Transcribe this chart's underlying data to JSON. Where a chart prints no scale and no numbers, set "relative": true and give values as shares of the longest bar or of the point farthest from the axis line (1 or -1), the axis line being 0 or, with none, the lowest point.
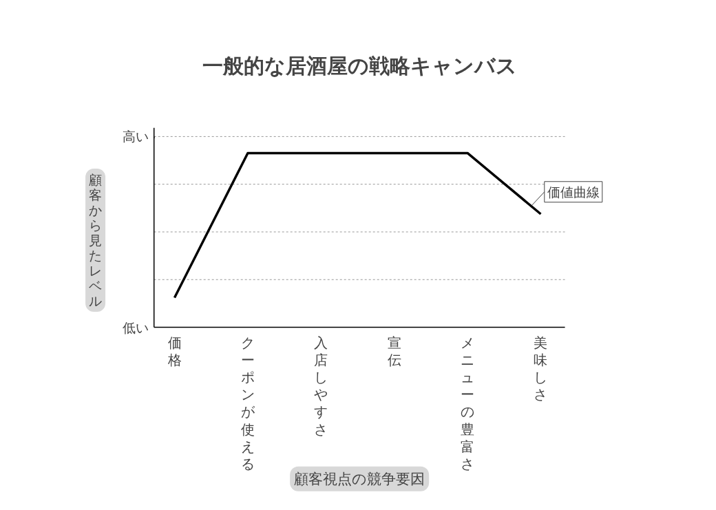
{
  "chart_data": {
    "type": "line",
    "title": "一般的な居酒屋の戦略キャンバス",
    "xlabel": "顧客視点の競争要因",
    "ylabel": "顧客から見たレベル",
    "categories": [
      "価格",
      "クーポンが使える",
      "入店しやすさ",
      "宣伝",
      "メニューの豊富さ",
      "美味しさ"
    ],
    "relative": true,
    "grid": "y",
    "series": [
      {
        "color": "#000000",
        "values": [
          0.17,
          1,
          1,
          1,
          1,
          0.65
        ]
      }
    ],
    "annotations": [
      "高い",
      "低い",
      "価値曲線"
    ]
  }
}
